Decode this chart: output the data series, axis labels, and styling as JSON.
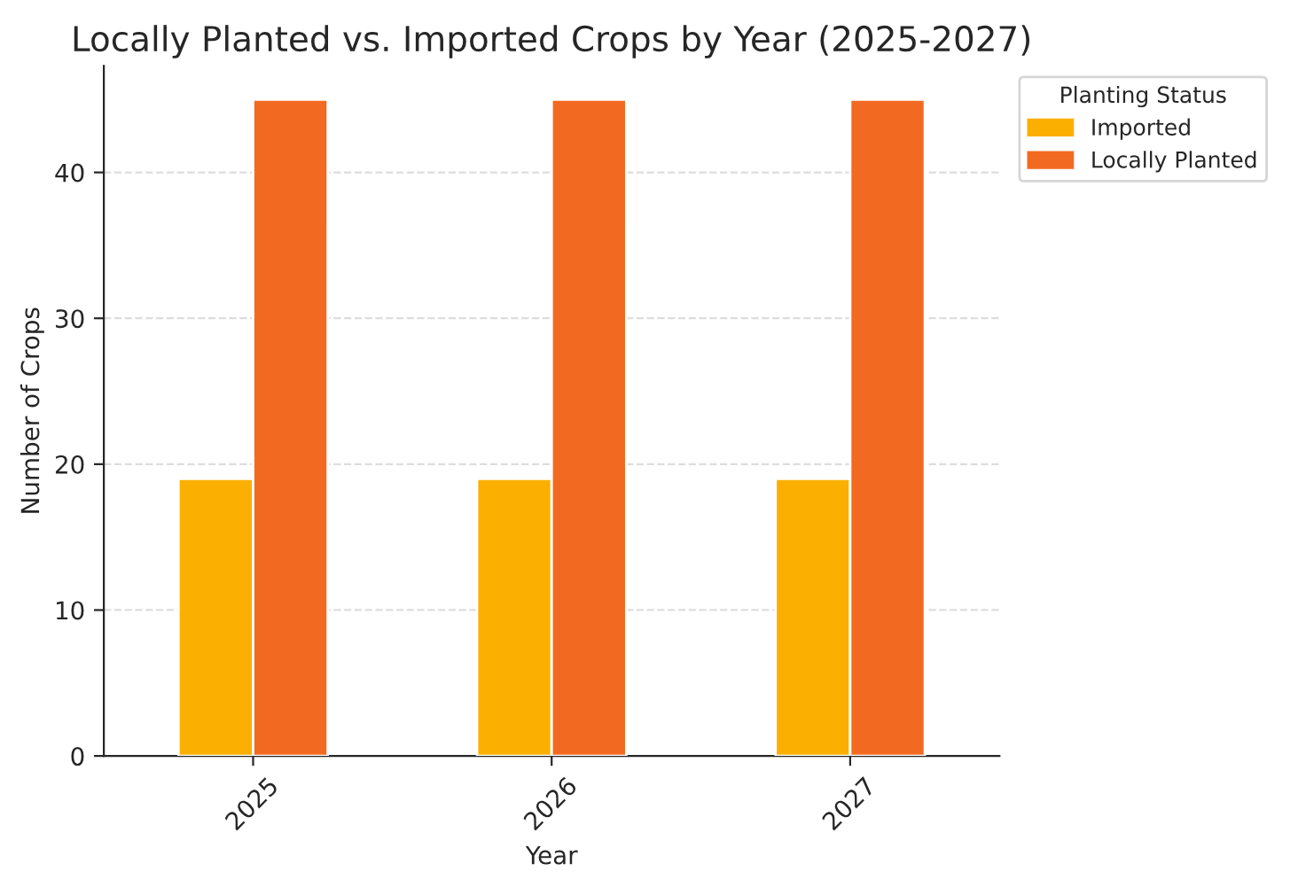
{
  "chart_data": {
    "type": "bar",
    "title": "Locally Planted vs. Imported Crops by Year (2025-2027)",
    "xlabel": "Year",
    "ylabel": "Number of Crops",
    "legend_title": "Planting Status",
    "categories": [
      "2025",
      "2026",
      "2027"
    ],
    "series": [
      {
        "name": "Imported",
        "color": "#fbaf00",
        "values": [
          19,
          19,
          19
        ]
      },
      {
        "name": "Locally Planted",
        "color": "#f26a21",
        "values": [
          45,
          45,
          45
        ]
      }
    ],
    "ylim": [
      0,
      47.3
    ],
    "yticks": [
      0,
      10,
      20,
      30,
      40
    ],
    "grid": "y",
    "legend": "top right"
  }
}
